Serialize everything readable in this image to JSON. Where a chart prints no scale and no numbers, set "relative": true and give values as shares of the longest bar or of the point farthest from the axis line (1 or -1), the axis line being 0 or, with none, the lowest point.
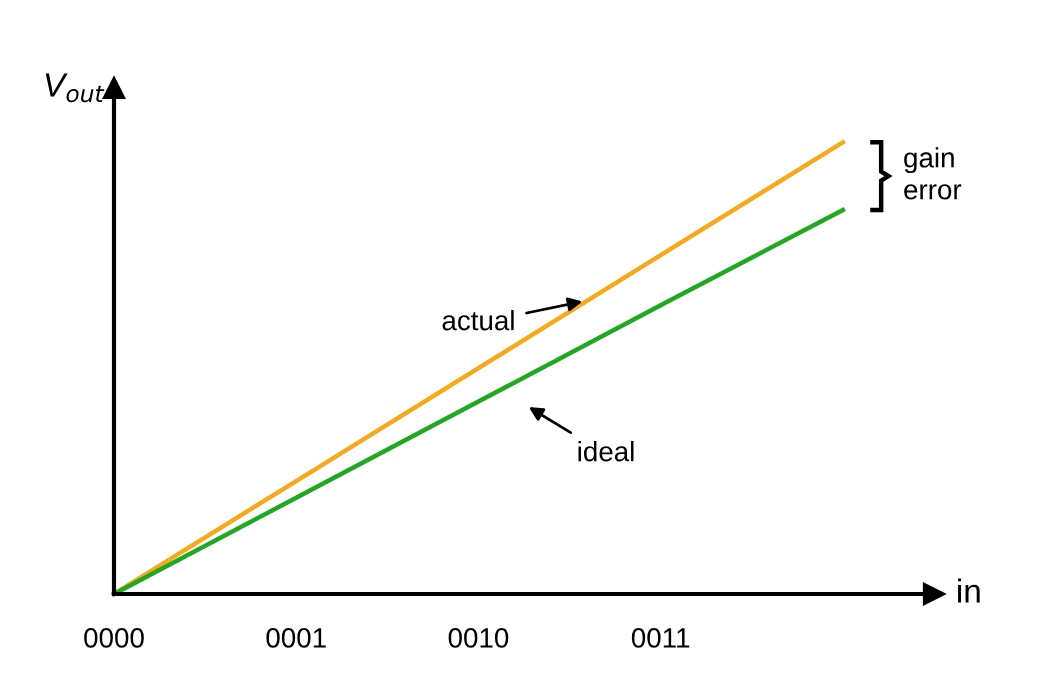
{
  "chart_data": {
    "type": "line",
    "relative": true,
    "ylabel": "V$_{out}$",
    "xlabel": "in",
    "categories": [
      "0000",
      "0001",
      "0010",
      "0011",
      null
    ],
    "series": [
      {
        "name": "actual",
        "color": "#f7a81b",
        "values": [
          0,
          0.25,
          0.5,
          0.75,
          1
        ]
      },
      {
        "name": "ideal",
        "color": "#21a821",
        "values": [
          0,
          0.213,
          0.426,
          0.639,
          0.85
        ]
      }
    ],
    "annotations": [
      "gain error"
    ],
    "legend": false,
    "grid": false,
    "marker": "none",
    "line_style": "solid"
  }
}
